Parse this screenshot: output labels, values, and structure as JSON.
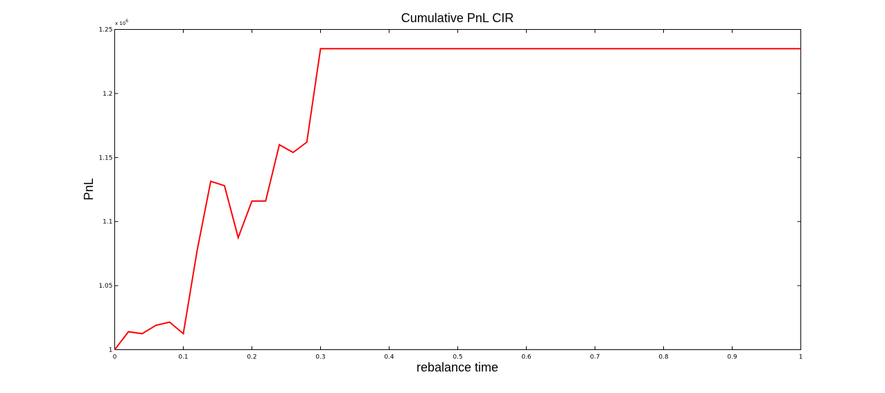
{
  "chart_data": {
    "type": "line",
    "title": "Cumulative PnL CIR",
    "xlabel": "rebalance time",
    "ylabel": "PnL",
    "y_exponent_label": "x 10",
    "y_exponent_power": "6",
    "xlim": [
      0,
      1
    ],
    "ylim": [
      1.0,
      1.25
    ],
    "y_scale_note": "values in units of 10^6",
    "grid": false,
    "x_ticks": [
      {
        "value": 0,
        "label": "0"
      },
      {
        "value": 0.1,
        "label": "0.1"
      },
      {
        "value": 0.2,
        "label": "0.2"
      },
      {
        "value": 0.3,
        "label": "0.3"
      },
      {
        "value": 0.4,
        "label": "0.4"
      },
      {
        "value": 0.5,
        "label": "0.5"
      },
      {
        "value": 0.6,
        "label": "0.6"
      },
      {
        "value": 0.7,
        "label": "0.7"
      },
      {
        "value": 0.8,
        "label": "0.8"
      },
      {
        "value": 0.9,
        "label": "0.9"
      },
      {
        "value": 1,
        "label": "1"
      }
    ],
    "y_ticks": [
      {
        "value": 1.0,
        "label": "1"
      },
      {
        "value": 1.05,
        "label": "1.05"
      },
      {
        "value": 1.1,
        "label": "1.1"
      },
      {
        "value": 1.15,
        "label": "1.15"
      },
      {
        "value": 1.2,
        "label": "1.2"
      },
      {
        "value": 1.25,
        "label": "1.25"
      }
    ],
    "series": [
      {
        "color": "#ff0000",
        "x": [
          0,
          0.02,
          0.04,
          0.06,
          0.08,
          0.1,
          0.12,
          0.14,
          0.16,
          0.18,
          0.2,
          0.22,
          0.24,
          0.26,
          0.28,
          0.3,
          1.0
        ],
        "y": [
          1.0,
          1.014,
          1.0125,
          1.019,
          1.0215,
          1.0125,
          1.077,
          1.1315,
          1.128,
          1.0875,
          1.116,
          1.116,
          1.16,
          1.154,
          1.162,
          1.235,
          1.235
        ]
      }
    ]
  }
}
